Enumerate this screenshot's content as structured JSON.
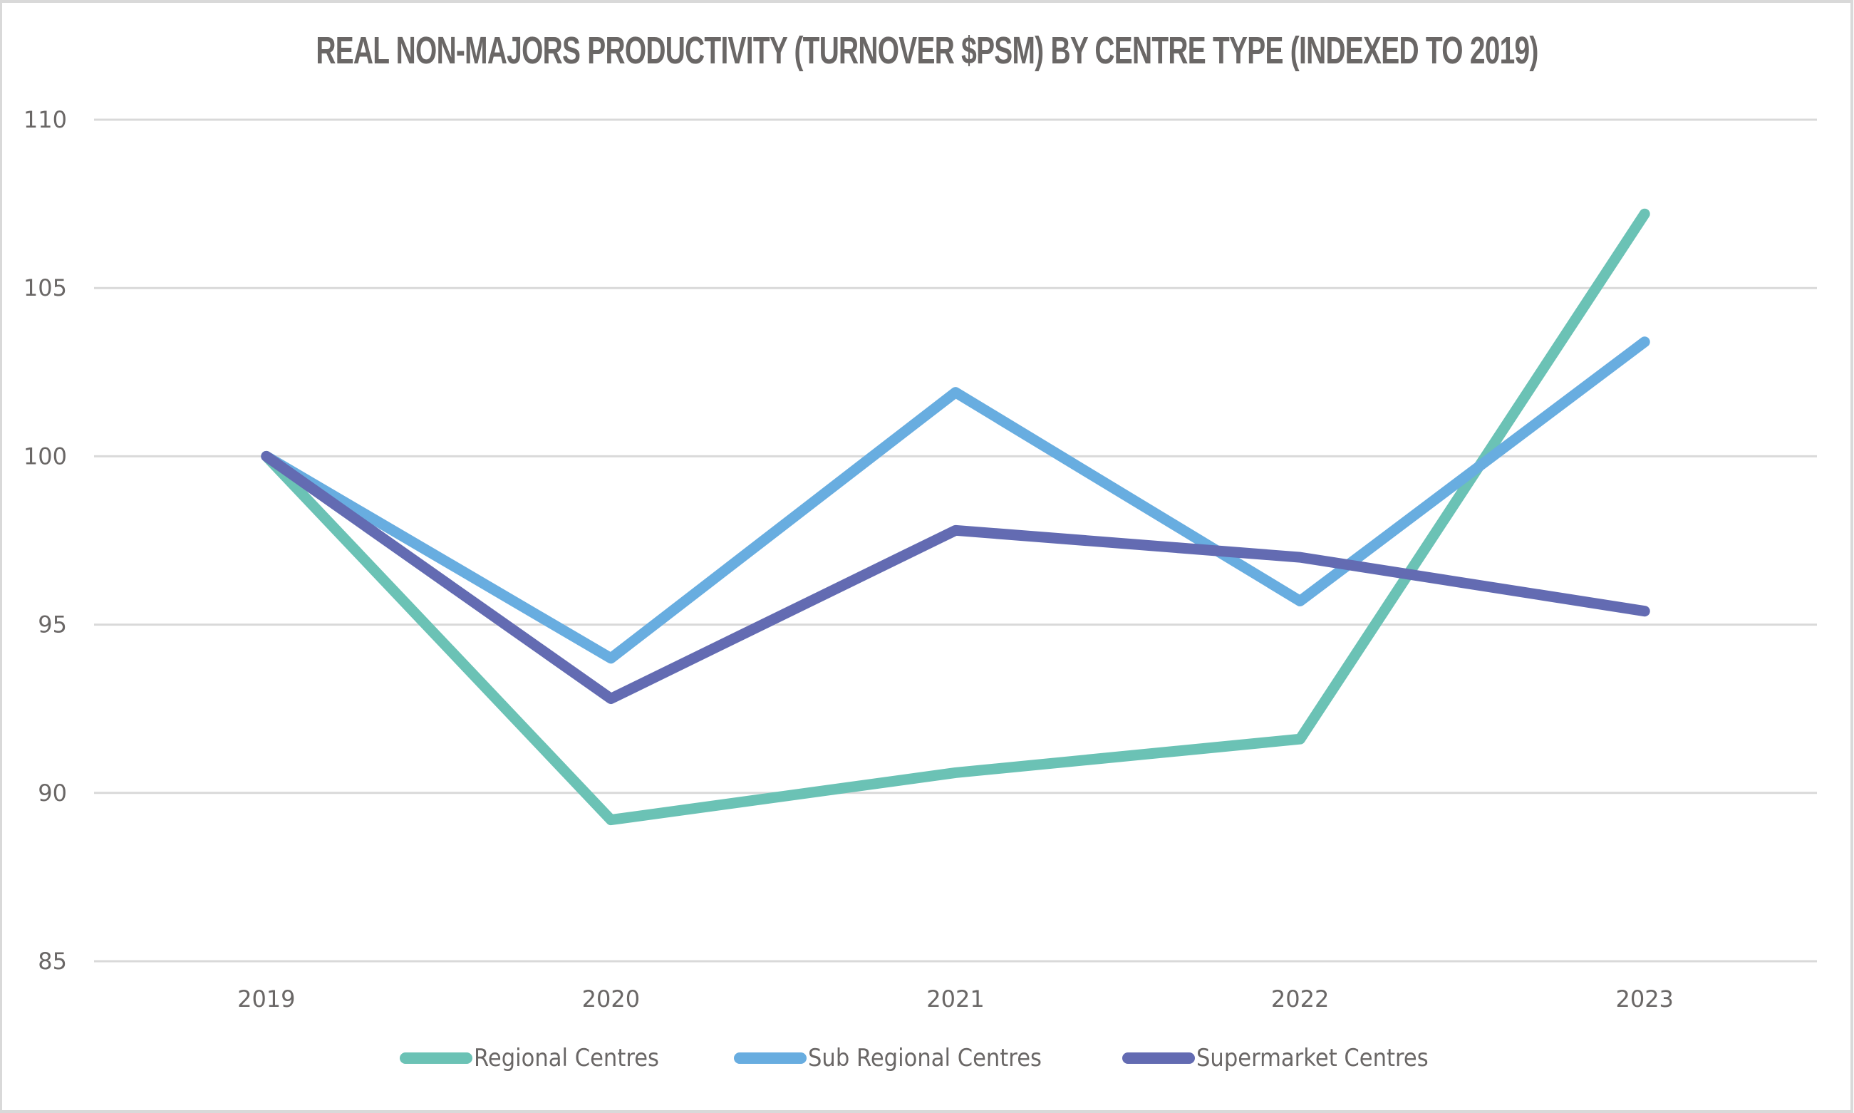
{
  "chart_data": {
    "type": "line",
    "title": "REAL NON-MAJORS PRODUCTIVITY (TURNOVER $PSM) BY CENTRE TYPE (INDEXED TO 2019)",
    "xlabel": "",
    "ylabel": "",
    "categories": [
      "2019",
      "2020",
      "2021",
      "2022",
      "2023"
    ],
    "ylim": [
      85,
      110
    ],
    "yticks": [
      "85",
      "90",
      "95",
      "100",
      "105",
      "110"
    ],
    "ytick_values": [
      85,
      90,
      95,
      100,
      105,
      110
    ],
    "grid": true,
    "legend_position": "bottom",
    "series": [
      {
        "name": "Regional Centres",
        "color": "#6BC2B5",
        "values": [
          100,
          89.2,
          90.6,
          91.6,
          107.2
        ]
      },
      {
        "name": "Sub Regional Centres",
        "color": "#68ADE0",
        "values": [
          100,
          94.0,
          101.9,
          95.7,
          103.4
        ]
      },
      {
        "name": "Supermarket Centres",
        "color": "#636BB2",
        "values": [
          100,
          92.8,
          97.8,
          97.0,
          95.4
        ]
      }
    ]
  }
}
